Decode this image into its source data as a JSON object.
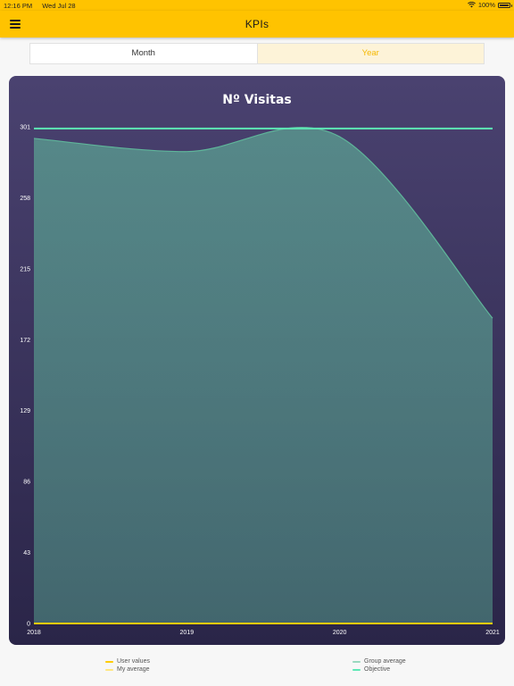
{
  "status_bar": {
    "time": "12:16 PM",
    "date": "Wed Jul 28",
    "battery": "100%"
  },
  "app_bar": {
    "title": "KPIs"
  },
  "segments": {
    "month": "Month",
    "year": "Year",
    "selected": "year"
  },
  "colors": {
    "accent": "#ffc300",
    "user_values": "#ffcc00",
    "my_average": "#ffe680",
    "group_average": "#5fb59a",
    "objective": "#5de8b5"
  },
  "icons": {
    "menu": "hamburger-menu-icon",
    "wifi": "wifi-icon",
    "battery": "battery-icon"
  },
  "chart_data": {
    "type": "area",
    "title": "Nº Visitas",
    "x": [
      "2018",
      "2019",
      "2020",
      "2021"
    ],
    "yticks": [
      "0",
      "43",
      "86",
      "129",
      "172",
      "215",
      "258",
      "301"
    ],
    "ylim": [
      0,
      301
    ],
    "grid": false,
    "legend_position": "bottom",
    "series": [
      {
        "name": "User values",
        "type": "line",
        "values": [
          0,
          0,
          0,
          0
        ]
      },
      {
        "name": "My average",
        "type": "line",
        "values": [
          0,
          0,
          0,
          0
        ]
      },
      {
        "name": "Group average",
        "type": "area",
        "values": [
          294,
          286,
          295,
          185
        ]
      },
      {
        "name": "Objective",
        "type": "line",
        "values": [
          300,
          300,
          300,
          300
        ]
      }
    ]
  }
}
